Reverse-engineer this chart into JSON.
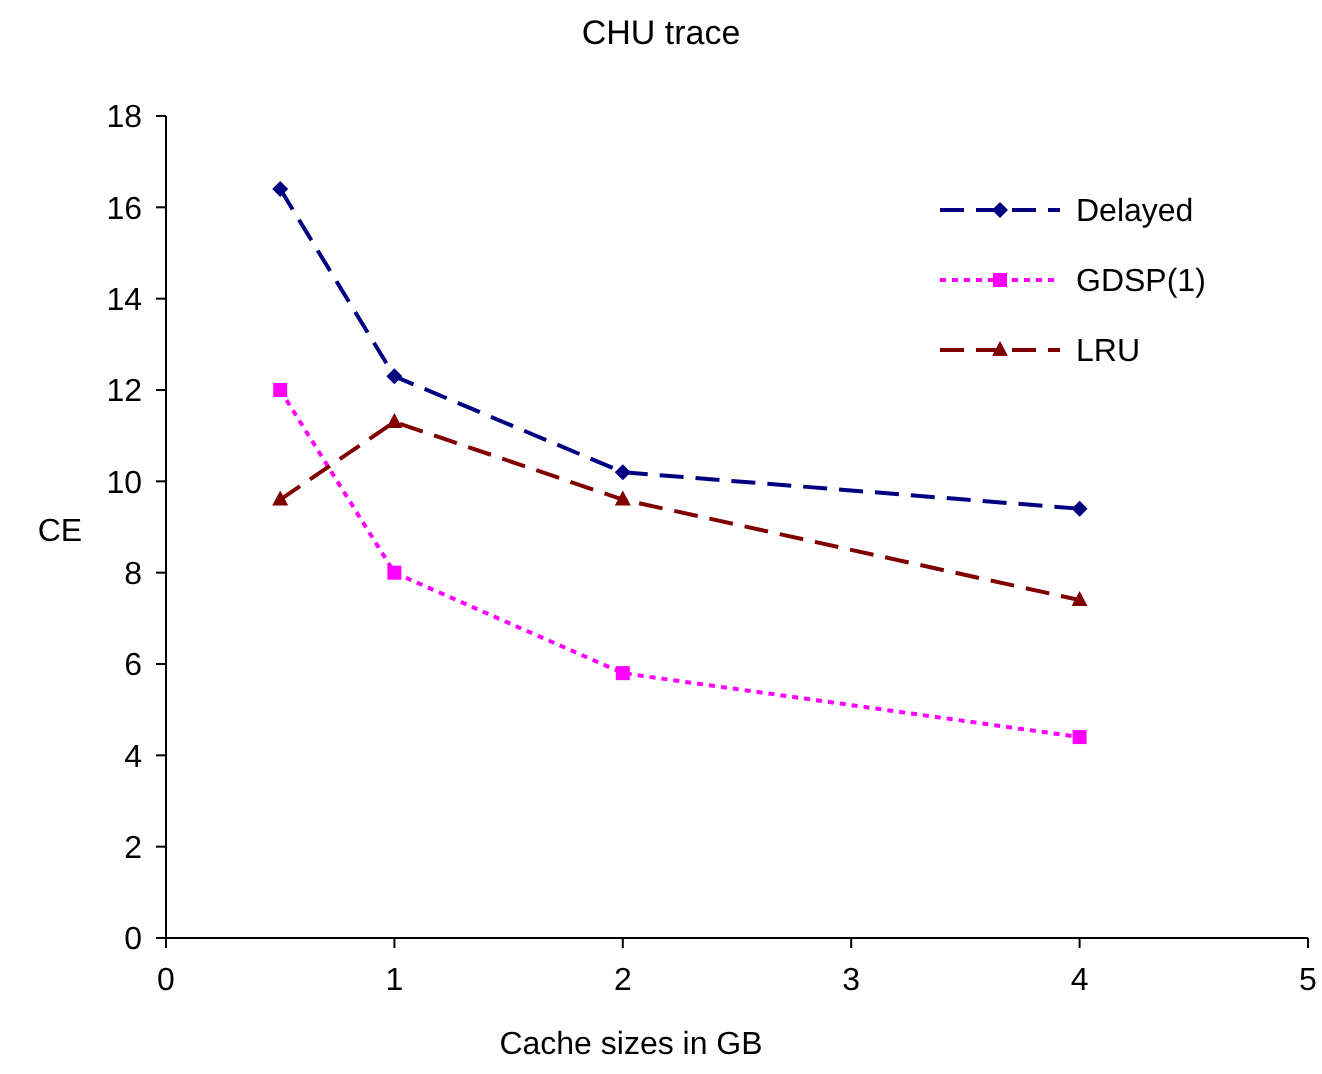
{
  "chart_data": {
    "type": "line",
    "title": "CHU trace",
    "xlabel": "Cache sizes in GB",
    "ylabel": "CE",
    "x": [
      0.5,
      1,
      2,
      4
    ],
    "series": [
      {
        "name": "Delayed",
        "color": "#000080",
        "values": [
          16.4,
          12.3,
          10.2,
          9.4
        ],
        "marker": "diamond",
        "line_style": "dashed"
      },
      {
        "name": "GDSP(1)",
        "color": "#ff00ff",
        "values": [
          12,
          8,
          5.8,
          4.4
        ],
        "marker": "square",
        "line_style": "dotted"
      },
      {
        "name": "LRU",
        "color": "#800000",
        "values": [
          9.6,
          11.3,
          9.6,
          7.4
        ],
        "marker": "triangle",
        "line_style": "dashed"
      }
    ],
    "xlim": [
      0,
      5
    ],
    "xticks": [
      0,
      1,
      2,
      3,
      4,
      5
    ],
    "ylim": [
      0,
      18
    ],
    "yticks": [
      0,
      2,
      4,
      6,
      8,
      10,
      12,
      14,
      16,
      18
    ],
    "grid": false,
    "legend": "top right"
  }
}
